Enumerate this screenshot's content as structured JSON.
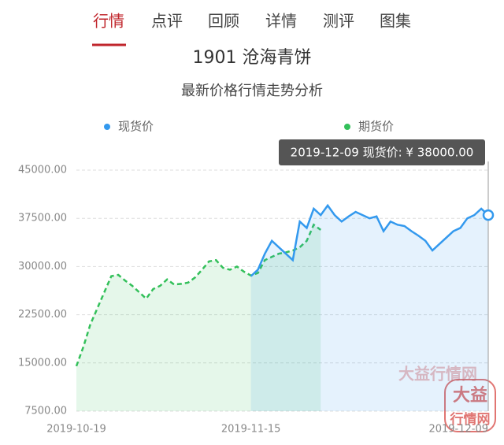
{
  "tabs": [
    "行情",
    "点评",
    "回顾",
    "详情",
    "测评",
    "图集"
  ],
  "watermark": "大益行情网",
  "logo": [
    "大益",
    "行情网"
  ],
  "chart_data": {
    "type": "line",
    "title": "1901 沧海青饼",
    "subtitle": "最新价格行情走势分析",
    "tooltip": "2019-12-09 现货价: ¥ 38000.00",
    "grid": true,
    "ylim": [
      7500,
      45000
    ],
    "yticks": [
      {
        "value": 7500,
        "label": "7500.00"
      },
      {
        "value": 15000,
        "label": "15000.00"
      },
      {
        "value": 22500,
        "label": "22500.00"
      },
      {
        "value": 30000,
        "label": "30000.00"
      },
      {
        "value": 37500,
        "label": "37500.00"
      },
      {
        "value": 45000,
        "label": "45000.00"
      }
    ],
    "categories": [
      "2019-10-19",
      null,
      null,
      null,
      null,
      null,
      null,
      null,
      null,
      null,
      null,
      null,
      null,
      null,
      null,
      null,
      null,
      null,
      null,
      null,
      null,
      null,
      null,
      null,
      null,
      "2019-11-15",
      null,
      null,
      null,
      null,
      null,
      null,
      null,
      null,
      null,
      null,
      null,
      null,
      null,
      null,
      null,
      null,
      null,
      null,
      null,
      null,
      null,
      null,
      null,
      null,
      null,
      null,
      null,
      null,
      null,
      null,
      null,
      null,
      null,
      "2019-12-09"
    ],
    "series": [
      {
        "name": "现货价",
        "color": "#3399ee",
        "values": [
          null,
          null,
          null,
          null,
          null,
          null,
          null,
          null,
          null,
          null,
          null,
          null,
          null,
          null,
          null,
          null,
          null,
          null,
          null,
          null,
          null,
          null,
          null,
          null,
          null,
          28500,
          29500,
          32000,
          34000,
          33000,
          32000,
          31000,
          37000,
          36000,
          39000,
          38000,
          39500,
          38000,
          37000,
          37800,
          38500,
          38000,
          37500,
          37800,
          35500,
          37000,
          36500,
          36300,
          35500,
          34800,
          34000,
          32500,
          33500,
          34500,
          35500,
          36000,
          37500,
          38000,
          39000,
          38000
        ]
      },
      {
        "name": "期货价",
        "color": "#33c05a",
        "values": [
          14500,
          17500,
          21000,
          23500,
          26000,
          28500,
          28700,
          27800,
          27000,
          26000,
          25000,
          26500,
          27000,
          28000,
          27200,
          27300,
          27500,
          28300,
          29500,
          30800,
          31000,
          29800,
          29500,
          30000,
          29200,
          28600,
          29000,
          31000,
          31500,
          32000,
          32200,
          32500,
          33000,
          34000,
          36500,
          35700,
          null,
          null,
          null,
          null,
          null,
          null,
          null,
          null,
          null,
          null,
          null,
          null,
          null,
          null,
          null,
          null,
          null,
          null,
          null,
          null,
          null,
          null,
          null,
          null
        ]
      }
    ]
  }
}
